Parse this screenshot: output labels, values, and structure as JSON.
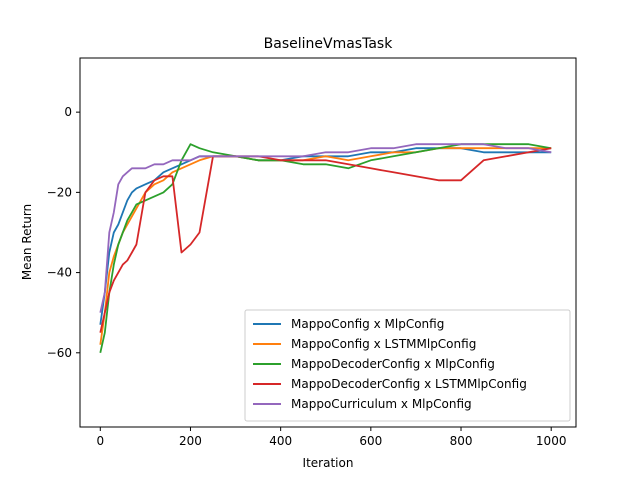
{
  "chart_data": {
    "type": "line",
    "title": "BaselineVmasTask",
    "xlabel": "Iteration",
    "ylabel": "Mean Return",
    "xlim": [
      -45,
      1055
    ],
    "ylim": [
      -78.5,
      13.5
    ],
    "xticks": [
      0,
      200,
      400,
      600,
      800,
      1000
    ],
    "yticks": [
      -60,
      -40,
      -20,
      0
    ],
    "grid": false,
    "legend_position": "lower-right",
    "series": [
      {
        "name": "MappoConfig x MlpConfig",
        "color": "#1f77b4",
        "x": [
          0,
          10,
          20,
          30,
          40,
          50,
          60,
          70,
          80,
          100,
          120,
          140,
          160,
          180,
          200,
          220,
          250,
          300,
          350,
          400,
          450,
          500,
          550,
          600,
          650,
          700,
          750,
          800,
          850,
          900,
          950,
          1000
        ],
        "y": [
          -53,
          -45,
          -35,
          -30,
          -28,
          -25,
          -22,
          -20,
          -19,
          -18,
          -17,
          -15,
          -14,
          -13,
          -12,
          -11,
          -11,
          -11,
          -12,
          -12,
          -11,
          -11,
          -11,
          -10,
          -10,
          -9,
          -9,
          -9,
          -10,
          -10,
          -10,
          -10
        ]
      },
      {
        "name": "MappoConfig x LSTMMlpConfig",
        "color": "#ff7f0e",
        "x": [
          0,
          10,
          20,
          30,
          40,
          50,
          60,
          70,
          80,
          100,
          120,
          140,
          160,
          180,
          200,
          220,
          250,
          300,
          350,
          400,
          450,
          500,
          550,
          600,
          650,
          700,
          750,
          800,
          850,
          900,
          950,
          1000
        ],
        "y": [
          -58,
          -50,
          -40,
          -36,
          -33,
          -30,
          -28,
          -26,
          -24,
          -20,
          -18,
          -17,
          -15,
          -14,
          -13,
          -12,
          -11,
          -11,
          -12,
          -12,
          -12,
          -11,
          -12,
          -11,
          -10,
          -10,
          -9,
          -9,
          -9,
          -9,
          -9,
          -9
        ]
      },
      {
        "name": "MappoDecoderConfig x MlpConfig",
        "color": "#2ca02c",
        "x": [
          0,
          10,
          20,
          30,
          40,
          50,
          60,
          70,
          80,
          100,
          120,
          140,
          160,
          180,
          200,
          220,
          250,
          300,
          350,
          400,
          450,
          500,
          550,
          600,
          650,
          700,
          750,
          800,
          850,
          900,
          950,
          1000
        ],
        "y": [
          -60,
          -55,
          -45,
          -38,
          -33,
          -30,
          -27,
          -25,
          -23,
          -22,
          -21,
          -20,
          -18,
          -12,
          -8,
          -9,
          -10,
          -11,
          -12,
          -12,
          -13,
          -13,
          -14,
          -12,
          -11,
          -10,
          -9,
          -8,
          -8,
          -8,
          -8,
          -9
        ]
      },
      {
        "name": "MappoDecoderConfig x LSTMMlpConfig",
        "color": "#d62728",
        "x": [
          0,
          10,
          20,
          30,
          40,
          50,
          60,
          70,
          80,
          100,
          120,
          140,
          160,
          180,
          200,
          220,
          250,
          300,
          350,
          400,
          450,
          500,
          550,
          600,
          650,
          700,
          750,
          800,
          850,
          900,
          950,
          1000
        ],
        "y": [
          -55,
          -50,
          -45,
          -42,
          -40,
          -38,
          -37,
          -35,
          -33,
          -20,
          -17,
          -16,
          -16,
          -35,
          -33,
          -30,
          -11,
          -11,
          -11,
          -12,
          -12,
          -12,
          -13,
          -14,
          -15,
          -16,
          -17,
          -17,
          -12,
          -11,
          -10,
          -9
        ]
      },
      {
        "name": "MappoCurriculum x MlpConfig",
        "color": "#9467bd",
        "x": [
          0,
          10,
          20,
          30,
          40,
          50,
          60,
          70,
          80,
          100,
          120,
          140,
          160,
          180,
          200,
          220,
          250,
          300,
          350,
          400,
          450,
          500,
          550,
          600,
          650,
          700,
          750,
          800,
          850,
          900,
          950,
          1000
        ],
        "y": [
          -50,
          -45,
          -30,
          -25,
          -18,
          -16,
          -15,
          -14,
          -14,
          -14,
          -13,
          -13,
          -12,
          -12,
          -12,
          -11,
          -11,
          -11,
          -11,
          -11,
          -11,
          -10,
          -10,
          -9,
          -9,
          -8,
          -8,
          -8,
          -8,
          -9,
          -9,
          -10
        ]
      }
    ]
  }
}
